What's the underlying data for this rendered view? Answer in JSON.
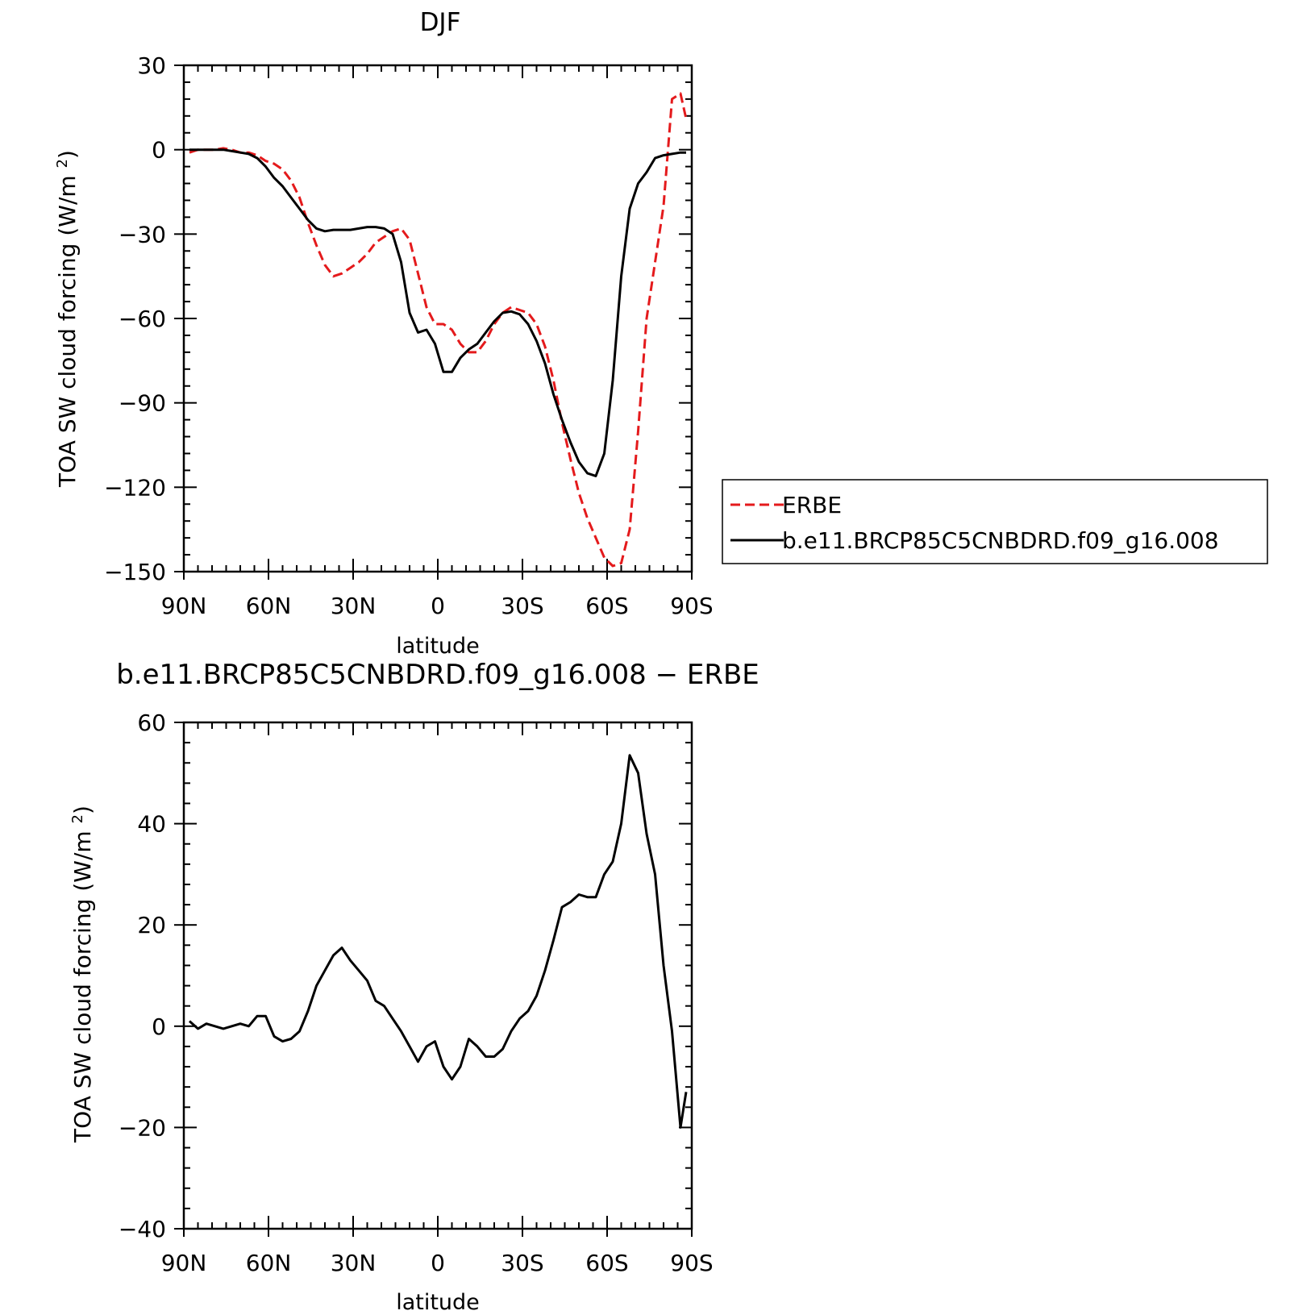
{
  "colors": {
    "erbe": "#e41a1c",
    "model": "#000000",
    "background": "#ffffff"
  },
  "chart_data": [
    {
      "type": "line",
      "title": "DJF",
      "xlabel": "latitude",
      "ylabel": "TOA SW cloud forcing (W/m²)",
      "ylim": [
        -150,
        30
      ],
      "xlim": [
        90,
        -90
      ],
      "x_ticks": [
        90,
        60,
        30,
        0,
        -30,
        -60,
        -90
      ],
      "x_tick_labels": [
        "90N",
        "60N",
        "30N",
        "0",
        "30S",
        "60S",
        "90S"
      ],
      "y_ticks": [
        30,
        0,
        -30,
        -60,
        -90,
        -120,
        -150
      ],
      "y_tick_labels": [
        "30",
        "0",
        "−30",
        "−60",
        "−90",
        "−120",
        "−150"
      ],
      "legend_position": "right",
      "series": [
        {
          "name": "ERBE",
          "style": "dashed",
          "color": "#e41a1c",
          "x": [
            88,
            85,
            82,
            79,
            76,
            73,
            70,
            67,
            64,
            61,
            58,
            55,
            52,
            49,
            46,
            43,
            40,
            37,
            34,
            31,
            28,
            25,
            22,
            19,
            16,
            13,
            10,
            7,
            4,
            1,
            -2,
            -5,
            -8,
            -11,
            -14,
            -17,
            -20,
            -23,
            -26,
            -29,
            -32,
            -35,
            -38,
            -41,
            -44,
            -47,
            -50,
            -53,
            -56,
            -59,
            -62,
            -65,
            -68,
            -71,
            -74,
            -77,
            -80,
            -83,
            -86,
            -88
          ],
          "y": [
            -1,
            0,
            0,
            0,
            0.5,
            0,
            -1,
            -1,
            -2,
            -4,
            -5,
            -7,
            -11,
            -17,
            -26,
            -34,
            -41,
            -45,
            -44,
            -42,
            -40,
            -37,
            -33,
            -31,
            -29,
            -28,
            -32,
            -44,
            -56,
            -62,
            -62,
            -64,
            -69,
            -72,
            -72,
            -68,
            -62,
            -58,
            -56,
            -57,
            -58,
            -62,
            -70,
            -82,
            -97,
            -110,
            -122,
            -131,
            -138,
            -145,
            -148,
            -147,
            -135,
            -100,
            -60,
            -40,
            -20,
            18,
            20,
            11
          ]
        },
        {
          "name": "b.e11.BRCP85C5CNBDRD.f09_g16.008",
          "style": "solid",
          "color": "#000000",
          "x": [
            88,
            85,
            82,
            79,
            76,
            73,
            70,
            67,
            64,
            61,
            58,
            55,
            52,
            49,
            46,
            43,
            40,
            37,
            34,
            31,
            28,
            25,
            22,
            19,
            16,
            13,
            10,
            7,
            4,
            1,
            -2,
            -5,
            -8,
            -11,
            -14,
            -17,
            -20,
            -23,
            -26,
            -29,
            -32,
            -35,
            -38,
            -41,
            -44,
            -47,
            -50,
            -53,
            -56,
            -59,
            -62,
            -65,
            -68,
            -71,
            -74,
            -77,
            -80,
            -83,
            -86,
            -88
          ],
          "y": [
            0,
            0,
            0,
            0,
            0,
            -0.5,
            -1,
            -1.5,
            -3,
            -6,
            -10,
            -13,
            -17,
            -21,
            -25,
            -28,
            -29,
            -28.5,
            -28.5,
            -28.5,
            -28,
            -27.5,
            -27.5,
            -28,
            -30,
            -40,
            -58,
            -65,
            -64,
            -69,
            -79,
            -79,
            -74,
            -71,
            -69,
            -65,
            -61,
            -58,
            -57.5,
            -58.5,
            -62,
            -68,
            -76,
            -87,
            -96,
            -104,
            -111,
            -115,
            -116,
            -108,
            -82,
            -45,
            -21,
            -12,
            -8,
            -3,
            -2,
            -1.5,
            -1,
            -1
          ]
        }
      ]
    },
    {
      "type": "line",
      "title": "b.e11.BRCP85C5CNBDRD.f09_g16.008 − ERBE",
      "xlabel": "latitude",
      "ylabel": "TOA SW cloud forcing (W/m²)",
      "ylim": [
        -40,
        60
      ],
      "xlim": [
        90,
        -90
      ],
      "x_ticks": [
        90,
        60,
        30,
        0,
        -30,
        -60,
        -90
      ],
      "x_tick_labels": [
        "90N",
        "60N",
        "30N",
        "0",
        "30S",
        "60S",
        "90S"
      ],
      "y_ticks": [
        60,
        40,
        20,
        0,
        -20,
        -40
      ],
      "y_tick_labels": [
        "60",
        "40",
        "20",
        "0",
        "−20",
        "−40"
      ],
      "series": [
        {
          "style": "solid",
          "color": "#000000",
          "x": [
            88,
            85,
            82,
            79,
            76,
            73,
            70,
            67,
            64,
            61,
            58,
            55,
            52,
            49,
            46,
            43,
            40,
            37,
            34,
            31,
            28,
            25,
            22,
            19,
            16,
            13,
            10,
            7,
            4,
            1,
            -2,
            -5,
            -8,
            -11,
            -14,
            -17,
            -20,
            -23,
            -26,
            -29,
            -32,
            -35,
            -38,
            -41,
            -44,
            -47,
            -50,
            -53,
            -56,
            -59,
            -62,
            -65,
            -68,
            -71,
            -74,
            -77,
            -80,
            -83,
            -86,
            -88
          ],
          "y": [
            1,
            -0.5,
            0.5,
            0,
            -0.5,
            0,
            0.5,
            0,
            2,
            2,
            -2,
            -3,
            -2.5,
            -1,
            3,
            8,
            11,
            14,
            15.5,
            13,
            11,
            9,
            5,
            4,
            1.5,
            -1,
            -4,
            -7,
            -4,
            -3,
            -8,
            -10.5,
            -8,
            -2.5,
            -4,
            -6,
            -6,
            -4.5,
            -1,
            1.5,
            3,
            6,
            11,
            17,
            23.5,
            24.5,
            26,
            25.5,
            25.5,
            30,
            32.5,
            40,
            53.5,
            50,
            38,
            30,
            12,
            -1,
            -20,
            -13
          ]
        }
      ]
    }
  ],
  "legend": {
    "erbe_label": "ERBE",
    "model_label": "b.e11.BRCP85C5CNBDRD.f09_g16.008"
  }
}
